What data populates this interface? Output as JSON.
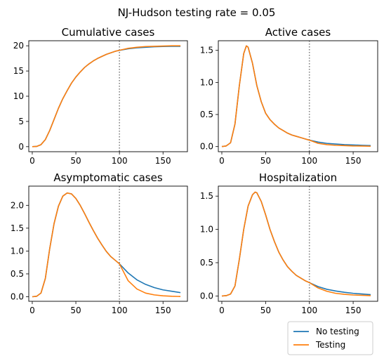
{
  "suptitle": "NJ-Hudson testing rate = 0.05",
  "legend": {
    "placement": "lower-right",
    "entries": [
      {
        "label": "No testing",
        "color": "#1f77b4"
      },
      {
        "label": "Testing",
        "color": "#ff7f0e"
      }
    ]
  },
  "colors": {
    "no_testing": "#1f77b4",
    "testing": "#ff7f0e",
    "vline": "#808080"
  },
  "chart_data": [
    {
      "type": "line",
      "title": "Cumulative cases",
      "xlim": [
        -4,
        178
      ],
      "ylim": [
        -1,
        21
      ],
      "xticks": [
        0,
        50,
        100,
        150
      ],
      "yticks": [
        0,
        5,
        10,
        15,
        20
      ],
      "grid": false,
      "vline": {
        "x": 100,
        "style": "dotted"
      },
      "series": [
        {
          "name": "No testing",
          "x": [
            0,
            5,
            10,
            15,
            20,
            25,
            30,
            35,
            40,
            45,
            50,
            55,
            60,
            65,
            70,
            75,
            80,
            85,
            90,
            95,
            100,
            110,
            120,
            130,
            140,
            150,
            160,
            170
          ],
          "y": [
            0,
            0.05,
            0.4,
            1.4,
            3.2,
            5.4,
            7.6,
            9.5,
            11.1,
            12.6,
            13.8,
            14.8,
            15.7,
            16.4,
            17.0,
            17.5,
            17.9,
            18.3,
            18.6,
            18.9,
            19.1,
            19.4,
            19.6,
            19.7,
            19.8,
            19.85,
            19.9,
            19.9
          ]
        },
        {
          "name": "Testing",
          "x": [
            0,
            5,
            10,
            15,
            20,
            25,
            30,
            35,
            40,
            45,
            50,
            55,
            60,
            65,
            70,
            75,
            80,
            85,
            90,
            95,
            100,
            110,
            120,
            130,
            140,
            150,
            160,
            170
          ],
          "y": [
            0,
            0.05,
            0.4,
            1.4,
            3.2,
            5.4,
            7.6,
            9.5,
            11.1,
            12.6,
            13.8,
            14.8,
            15.7,
            16.4,
            17.0,
            17.5,
            17.9,
            18.3,
            18.6,
            18.9,
            19.1,
            19.5,
            19.7,
            19.85,
            19.9,
            19.95,
            20.0,
            20.0
          ]
        }
      ]
    },
    {
      "type": "line",
      "title": "Active cases",
      "xlim": [
        -4,
        178
      ],
      "ylim": [
        -0.08,
        1.65
      ],
      "xticks": [
        0,
        50,
        100,
        150
      ],
      "yticks": [
        0.0,
        0.5,
        1.0,
        1.5
      ],
      "grid": false,
      "vline": {
        "x": 100,
        "style": "dotted"
      },
      "series": [
        {
          "name": "No testing",
          "x": [
            0,
            5,
            10,
            15,
            20,
            25,
            28,
            30,
            35,
            40,
            45,
            50,
            55,
            60,
            65,
            70,
            75,
            80,
            85,
            90,
            95,
            100,
            110,
            120,
            130,
            140,
            150,
            160,
            170
          ],
          "y": [
            0,
            0.01,
            0.06,
            0.35,
            0.95,
            1.45,
            1.57,
            1.55,
            1.3,
            0.95,
            0.7,
            0.52,
            0.42,
            0.35,
            0.29,
            0.25,
            0.21,
            0.18,
            0.16,
            0.14,
            0.12,
            0.1,
            0.07,
            0.05,
            0.04,
            0.03,
            0.025,
            0.02,
            0.015
          ]
        },
        {
          "name": "Testing",
          "x": [
            0,
            5,
            10,
            15,
            20,
            25,
            28,
            30,
            35,
            40,
            45,
            50,
            55,
            60,
            65,
            70,
            75,
            80,
            85,
            90,
            95,
            100,
            110,
            120,
            130,
            140,
            150,
            160,
            170
          ],
          "y": [
            0,
            0.01,
            0.06,
            0.35,
            0.95,
            1.45,
            1.57,
            1.55,
            1.3,
            0.95,
            0.7,
            0.52,
            0.42,
            0.35,
            0.29,
            0.25,
            0.21,
            0.18,
            0.16,
            0.14,
            0.12,
            0.1,
            0.05,
            0.03,
            0.02,
            0.015,
            0.01,
            0.008,
            0.005
          ]
        }
      ]
    },
    {
      "type": "line",
      "title": "Asymptomatic cases",
      "xlim": [
        -4,
        178
      ],
      "ylim": [
        -0.1,
        2.42
      ],
      "xticks": [
        0,
        50,
        100,
        150
      ],
      "yticks": [
        0.0,
        0.5,
        1.0,
        1.5,
        2.0
      ],
      "grid": false,
      "vline": {
        "x": 100,
        "style": "dotted"
      },
      "series": [
        {
          "name": "No testing",
          "x": [
            0,
            5,
            10,
            15,
            20,
            25,
            30,
            35,
            40,
            45,
            50,
            55,
            60,
            65,
            70,
            75,
            80,
            85,
            90,
            95,
            100,
            110,
            120,
            130,
            140,
            150,
            160,
            170
          ],
          "y": [
            0,
            0.01,
            0.08,
            0.4,
            1.05,
            1.6,
            1.98,
            2.2,
            2.27,
            2.25,
            2.15,
            2.0,
            1.82,
            1.63,
            1.45,
            1.28,
            1.13,
            0.99,
            0.88,
            0.8,
            0.72,
            0.52,
            0.37,
            0.27,
            0.2,
            0.15,
            0.12,
            0.09
          ]
        },
        {
          "name": "Testing",
          "x": [
            0,
            5,
            10,
            15,
            20,
            25,
            30,
            35,
            40,
            45,
            50,
            55,
            60,
            65,
            70,
            75,
            80,
            85,
            90,
            95,
            100,
            110,
            120,
            130,
            140,
            150,
            160,
            170
          ],
          "y": [
            0,
            0.01,
            0.08,
            0.4,
            1.05,
            1.6,
            1.98,
            2.2,
            2.27,
            2.25,
            2.15,
            2.0,
            1.82,
            1.63,
            1.45,
            1.28,
            1.13,
            0.99,
            0.88,
            0.8,
            0.72,
            0.35,
            0.17,
            0.08,
            0.04,
            0.02,
            0.01,
            0.005
          ]
        }
      ]
    },
    {
      "type": "line",
      "title": "Hospitalization",
      "xlim": [
        -4,
        178
      ],
      "ylim": [
        -0.08,
        1.65
      ],
      "xticks": [
        0,
        50,
        100,
        150
      ],
      "yticks": [
        0.0,
        0.5,
        1.0,
        1.5
      ],
      "grid": false,
      "vline": {
        "x": 100,
        "style": "dotted"
      },
      "series": [
        {
          "name": "No testing",
          "x": [
            0,
            5,
            10,
            15,
            20,
            25,
            30,
            35,
            38,
            40,
            45,
            50,
            55,
            60,
            65,
            70,
            75,
            80,
            85,
            90,
            95,
            100,
            110,
            120,
            130,
            140,
            150,
            160,
            170
          ],
          "y": [
            0,
            0.005,
            0.03,
            0.15,
            0.55,
            1.0,
            1.35,
            1.52,
            1.56,
            1.55,
            1.42,
            1.22,
            1.0,
            0.82,
            0.66,
            0.54,
            0.44,
            0.37,
            0.31,
            0.27,
            0.23,
            0.2,
            0.14,
            0.1,
            0.075,
            0.055,
            0.04,
            0.03,
            0.02
          ]
        },
        {
          "name": "Testing",
          "x": [
            0,
            5,
            10,
            15,
            20,
            25,
            30,
            35,
            38,
            40,
            45,
            50,
            55,
            60,
            65,
            70,
            75,
            80,
            85,
            90,
            95,
            100,
            110,
            120,
            130,
            140,
            150,
            160,
            170
          ],
          "y": [
            0,
            0.005,
            0.03,
            0.15,
            0.55,
            1.0,
            1.35,
            1.52,
            1.56,
            1.55,
            1.42,
            1.22,
            1.0,
            0.82,
            0.66,
            0.54,
            0.44,
            0.37,
            0.31,
            0.27,
            0.23,
            0.2,
            0.12,
            0.07,
            0.04,
            0.025,
            0.015,
            0.01,
            0.005
          ]
        }
      ]
    }
  ]
}
